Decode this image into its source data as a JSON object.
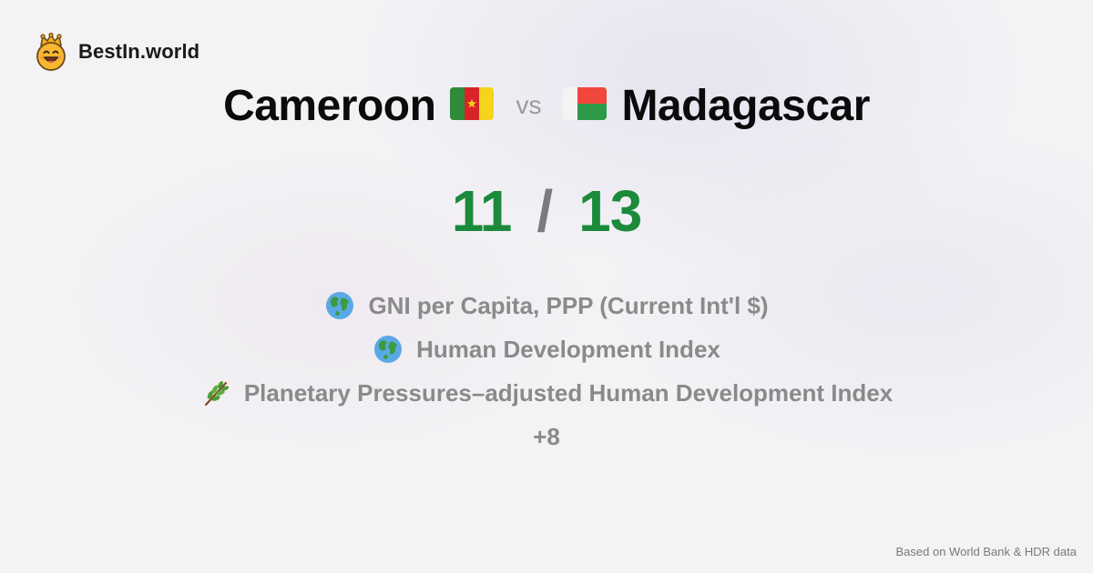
{
  "brand": {
    "name": "BestIn.world",
    "logo_icon": "crown-smiley-icon"
  },
  "comparison": {
    "left": {
      "name": "Cameroon",
      "flag_icon": "cameroon-flag-icon",
      "score": "11"
    },
    "separator": "vs",
    "right": {
      "name": "Madagascar",
      "flag_icon": "madagascar-flag-icon",
      "score": "13"
    },
    "score_separator": "/"
  },
  "metrics": [
    {
      "icon": "globe-icon",
      "label": "GNI per Capita, PPP (Current Int'l $)"
    },
    {
      "icon": "globe-icon",
      "label": "Human Development Index"
    },
    {
      "icon": "leaf-branch-icon",
      "label": "Planetary Pressures–adjusted Human Development Index"
    }
  ],
  "more_count": "+8",
  "footer": {
    "source_note": "Based on World Bank & HDR data"
  },
  "colors": {
    "score_green": "#1b8a3b",
    "muted_text": "#8a8a8a",
    "background": "#f3f2f5"
  }
}
